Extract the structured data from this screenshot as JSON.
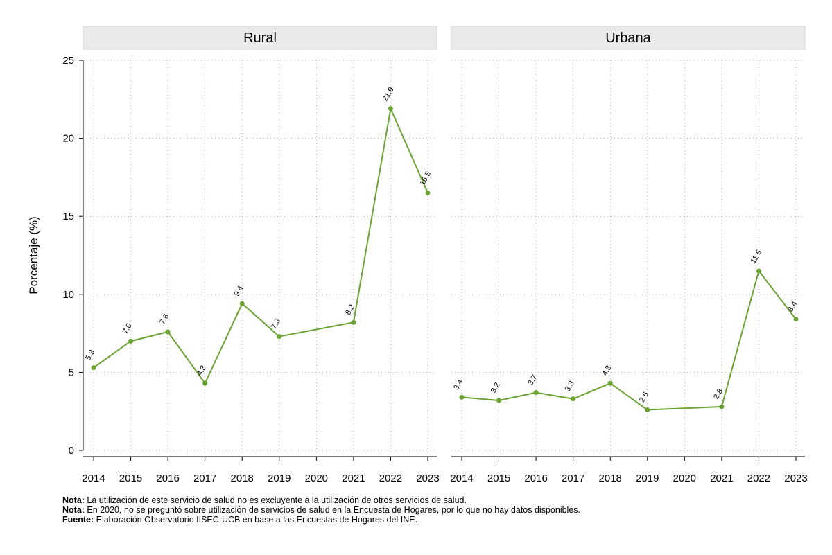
{
  "chart_data": {
    "type": "line",
    "ylabel": "Porcentaje (%)",
    "ylim": [
      0,
      25
    ],
    "yticks": [
      0,
      5,
      10,
      15,
      20,
      25
    ],
    "x": [
      "2014",
      "2015",
      "2016",
      "2017",
      "2018",
      "2019",
      "2020",
      "2021",
      "2022",
      "2023"
    ],
    "grid": true,
    "line_color": "#6aa334",
    "panels": [
      {
        "title": "Rural",
        "values": [
          5.3,
          7.0,
          7.6,
          4.3,
          9.4,
          7.3,
          null,
          8.2,
          21.9,
          16.5
        ],
        "labels": [
          "5.3",
          "7.0",
          "7.6",
          "4.3",
          "9.4",
          "7.3",
          null,
          "8.2",
          "21.9",
          "16.5"
        ]
      },
      {
        "title": "Urbana",
        "values": [
          3.4,
          3.2,
          3.7,
          3.3,
          4.3,
          2.6,
          null,
          2.8,
          11.5,
          8.4
        ],
        "labels": [
          "3.4",
          "3.2",
          "3.7",
          "3.3",
          "4.3",
          "2.6",
          null,
          "2.8",
          "11.5",
          "8.4"
        ]
      }
    ]
  },
  "notes": [
    {
      "label": "Nota:",
      "text": " La utilización de este servicio de salud no es excluyente a la utilización de otros servicios de salud."
    },
    {
      "label": "Nota:",
      "text": " En 2020, no se preguntó sobre utilización de servicios de salud en la Encuesta de Hogares, por lo que no hay datos disponibles."
    },
    {
      "label": "Fuente:",
      "text": " Elaboración Observatorio IISEC-UCB en base a las Encuestas de Hogares del INE."
    }
  ]
}
